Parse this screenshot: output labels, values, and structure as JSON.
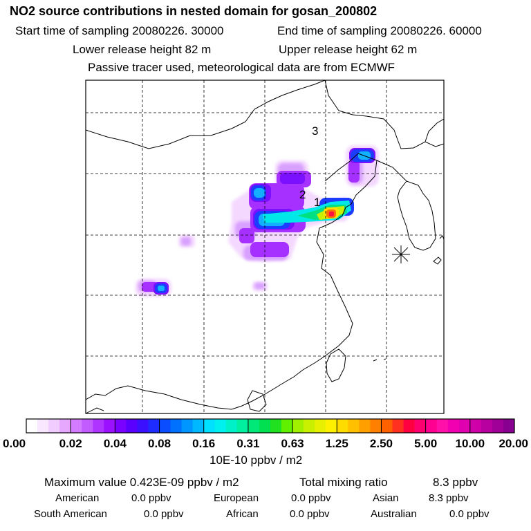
{
  "header": {
    "title": "NO2 source contributions in nested domain for gosan_200802",
    "start_label": "Start time of sampling 20080226. 30000",
    "end_label": "End time of sampling 20080226. 60000",
    "lower_label": "Lower release height   82 m",
    "upper_label": "Upper release height   62 m",
    "tracer_note": "Passive tracer used, meteorological data are from ECMWF"
  },
  "chart_data": {
    "type": "heatmap",
    "title": "NO2 source contributions in nested domain for gosan_200802",
    "map_labels": [
      "3",
      "2",
      "1"
    ],
    "receptor_marker": "gosan-station-asterisk",
    "grid": true,
    "colorbar": {
      "unit_label": "10E-10 ppbv / m2",
      "tick_labels": [
        "0.00",
        "0.02",
        "0.04",
        "0.08",
        "0.16",
        "0.31",
        "0.63",
        "1.25",
        "2.50",
        "5.00",
        "10.00",
        "20.00"
      ],
      "tick_values": [
        0.0,
        0.02,
        0.04,
        0.08,
        0.16,
        0.31,
        0.63,
        1.25,
        2.5,
        5.0,
        10.0,
        20.0
      ],
      "colors": [
        "#ffffff",
        "#f9e6ff",
        "#f1ccff",
        "#e6a8ff",
        "#d47cff",
        "#c35cff",
        "#b034ff",
        "#9a10ff",
        "#7a00ff",
        "#5a00ff",
        "#3a10ff",
        "#1f2cff",
        "#0a4cff",
        "#0070ff",
        "#0096ff",
        "#00b8ff",
        "#00e0ff",
        "#00f0f0",
        "#00f0c8",
        "#00f0a0",
        "#00e878",
        "#00e050",
        "#20e020",
        "#60f000",
        "#a0f000",
        "#c8f000",
        "#e6f000",
        "#fff000",
        "#ffdc00",
        "#ffc000",
        "#ffa000",
        "#ff8000",
        "#ff6000",
        "#ff3020",
        "#ff0040",
        "#ff0070",
        "#ff0090",
        "#ff10a8",
        "#f000b0",
        "#e000b0",
        "#d000a8",
        "#b800a0",
        "#a00098",
        "#880090"
      ]
    }
  },
  "footer": {
    "max_value_label": "Maximum value  0.423E-09 ppbv / m2",
    "total_label": "Total mixing ratio",
    "total_value": "8.3 ppbv",
    "regions": [
      {
        "name": "American",
        "value": "0.0 ppbv"
      },
      {
        "name": "European",
        "value": "0.0 ppbv"
      },
      {
        "name": "Asian",
        "value": "8.3 ppbv"
      },
      {
        "name": "South American",
        "value": "0.0 ppbv"
      },
      {
        "name": "African",
        "value": "0.0 ppbv"
      },
      {
        "name": "Australian",
        "value": "0.0 ppbv"
      }
    ]
  }
}
